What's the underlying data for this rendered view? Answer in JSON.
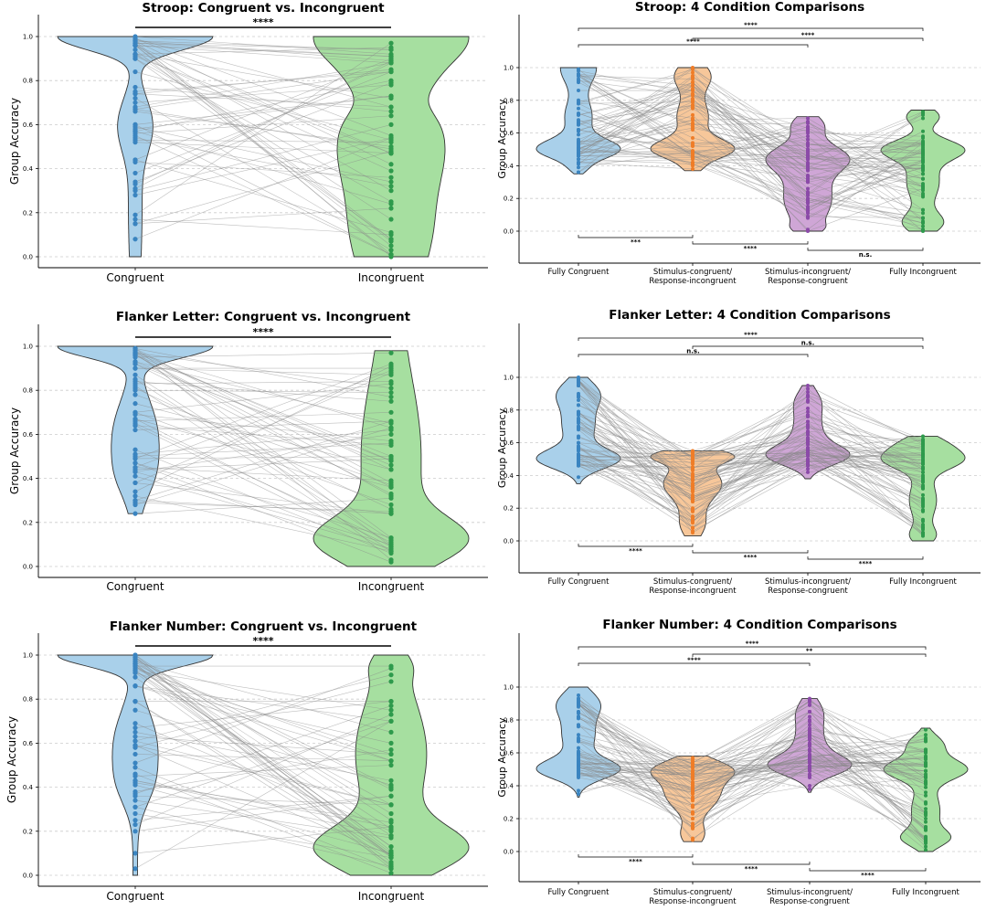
{
  "chart_data": [
    {
      "type": "violin",
      "title": "Stroop: Congruent vs. Incongruent",
      "ylabel": "Group Accuracy",
      "ylim": [
        0,
        1
      ],
      "yticks": [
        "0.0",
        "0.2",
        "0.4",
        "0.6",
        "0.8",
        "1.0"
      ],
      "grid": "y-dashed",
      "categories": [
        "Congruent",
        "Incongruent"
      ],
      "colors": [
        "#a9d0ea",
        "#a6dfa0"
      ],
      "point_colors": [
        "#3a84c0",
        "#2e9a4c"
      ],
      "medians": [
        1.0,
        0.5
      ],
      "comparisons": [
        {
          "from": 0,
          "to": 1,
          "label": "****"
        }
      ]
    },
    {
      "type": "violin",
      "title": "Stroop: 4 Condition Comparisons",
      "ylabel": "Group Accuracy",
      "ylim": [
        0,
        1
      ],
      "yticks": [
        "0.0",
        "0.2",
        "0.4",
        "0.6",
        "0.8",
        "1.0"
      ],
      "grid": "y-dashed",
      "categories": [
        "Fully Congruent",
        "Stimulus-congruent/\nResponse-incongruent",
        "Stimulus-incongruent/\nResponse-congruent",
        "Fully Incongruent"
      ],
      "colors": [
        "#a9d0ea",
        "#f7c79a",
        "#cfa6d6",
        "#a6dfa0"
      ],
      "point_colors": [
        "#3a84c0",
        "#ef7d28",
        "#8b4aa8",
        "#2e9a4c"
      ],
      "medians": [
        0.5,
        0.5,
        0.5,
        0.5
      ],
      "comparisons_top": [
        {
          "from": 0,
          "to": 3,
          "label": "****"
        },
        {
          "from": 1,
          "to": 3,
          "label": "****"
        },
        {
          "from": 0,
          "to": 2,
          "label": "****"
        }
      ],
      "comparisons_bottom": [
        {
          "from": 0,
          "to": 1,
          "label": "***"
        },
        {
          "from": 1,
          "to": 2,
          "label": "****"
        },
        {
          "from": 2,
          "to": 3,
          "label": "n.s."
        }
      ]
    },
    {
      "type": "violin",
      "title": "Flanker Letter: Congruent vs. Incongruent",
      "ylabel": "Group Accuracy",
      "ylim": [
        0,
        1
      ],
      "yticks": [
        "0.0",
        "0.2",
        "0.4",
        "0.6",
        "0.8",
        "1.0"
      ],
      "grid": "y-dashed",
      "categories": [
        "Congruent",
        "Incongruent"
      ],
      "colors": [
        "#a9d0ea",
        "#a6dfa0"
      ],
      "point_colors": [
        "#3a84c0",
        "#2e9a4c"
      ],
      "medians": [
        0.95,
        0.15
      ],
      "comparisons": [
        {
          "from": 0,
          "to": 1,
          "label": "****"
        }
      ]
    },
    {
      "type": "violin",
      "title": "Flanker Letter: 4 Condition Comparisons",
      "ylabel": "Group Accuracy",
      "ylim": [
        0,
        1
      ],
      "yticks": [
        "0.0",
        "0.2",
        "0.4",
        "0.6",
        "0.8",
        "1.0"
      ],
      "grid": "y-dashed",
      "categories": [
        "Fully Congruent",
        "Stimulus-congruent/\nResponse-incongruent",
        "Stimulus-incongruent/\nResponse-congruent",
        "Fully Incongruent"
      ],
      "colors": [
        "#a9d0ea",
        "#f7c79a",
        "#cfa6d6",
        "#a6dfa0"
      ],
      "point_colors": [
        "#3a84c0",
        "#ef7d28",
        "#8b4aa8",
        "#2e9a4c"
      ],
      "medians": [
        0.5,
        0.5,
        0.5,
        0.5
      ],
      "comparisons_top": [
        {
          "from": 0,
          "to": 3,
          "label": "****"
        },
        {
          "from": 1,
          "to": 3,
          "label": "n.s."
        },
        {
          "from": 0,
          "to": 2,
          "label": "n.s."
        }
      ],
      "comparisons_bottom": [
        {
          "from": 0,
          "to": 1,
          "label": "****"
        },
        {
          "from": 1,
          "to": 2,
          "label": "****"
        },
        {
          "from": 2,
          "to": 3,
          "label": "****"
        }
      ]
    },
    {
      "type": "violin",
      "title": "Flanker Number: Congruent vs. Incongruent",
      "ylabel": "Group Accuracy",
      "ylim": [
        0,
        1
      ],
      "yticks": [
        "0.0",
        "0.2",
        "0.4",
        "0.6",
        "0.8",
        "1.0"
      ],
      "grid": "y-dashed",
      "categories": [
        "Congruent",
        "Incongruent"
      ],
      "colors": [
        "#a9d0ea",
        "#a6dfa0"
      ],
      "point_colors": [
        "#3a84c0",
        "#2e9a4c"
      ],
      "medians": [
        0.95,
        0.15
      ],
      "comparisons": [
        {
          "from": 0,
          "to": 1,
          "label": "****"
        }
      ]
    },
    {
      "type": "violin",
      "title": "Flanker Number: 4 Condition Comparisons",
      "ylabel": "Group Accuracy",
      "ylim": [
        0,
        1
      ],
      "yticks": [
        "0.0",
        "0.2",
        "0.4",
        "0.6",
        "0.8",
        "1.0"
      ],
      "grid": "y-dashed",
      "categories": [
        "Fully Congruent",
        "Stimulus-congruent/\nResponse-incongruent",
        "Stimulus-incongruent/\nResponse-congruent",
        "Fully Incongruent"
      ],
      "colors": [
        "#a9d0ea",
        "#f7c79a",
        "#cfa6d6",
        "#a6dfa0"
      ],
      "point_colors": [
        "#3a84c0",
        "#ef7d28",
        "#8b4aa8",
        "#2e9a4c"
      ],
      "medians": [
        0.5,
        0.5,
        0.5,
        0.5
      ],
      "comparisons_top": [
        {
          "from": 0,
          "to": 3,
          "label": "****"
        },
        {
          "from": 1,
          "to": 3,
          "label": "**"
        },
        {
          "from": 0,
          "to": 2,
          "label": "****"
        }
      ],
      "comparisons_bottom": [
        {
          "from": 0,
          "to": 1,
          "label": "****"
        },
        {
          "from": 1,
          "to": 2,
          "label": "****"
        },
        {
          "from": 2,
          "to": 3,
          "label": "****"
        }
      ]
    }
  ]
}
